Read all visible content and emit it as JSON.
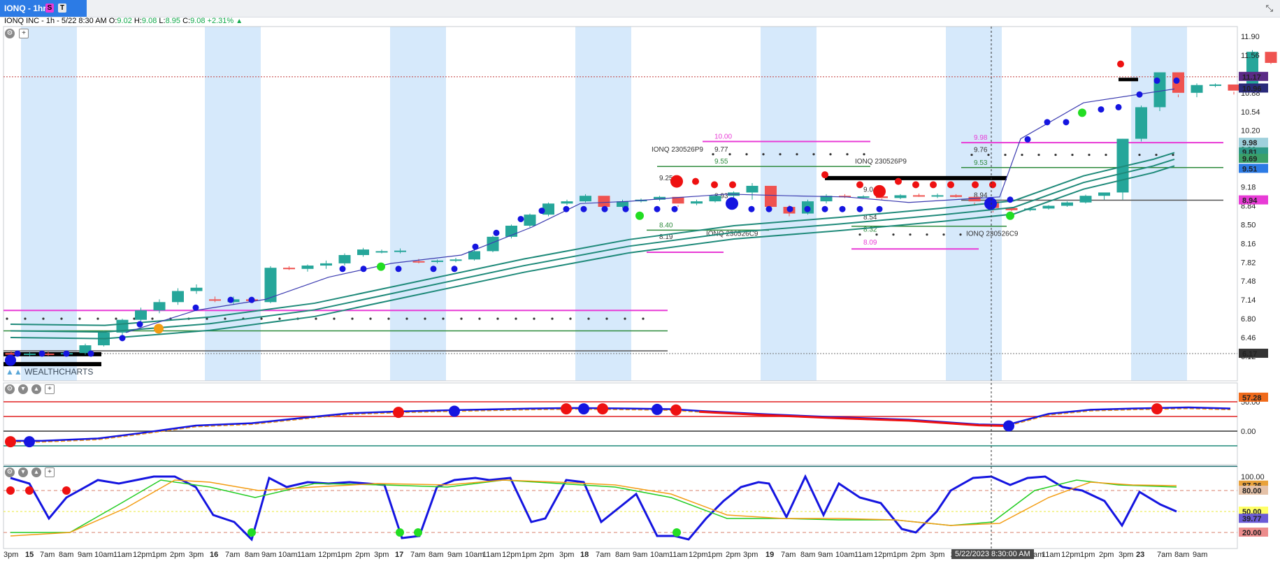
{
  "tab": {
    "title": "IONQ - 1hr",
    "badge_s": "S",
    "badge_t": "T"
  },
  "info": {
    "prefix": "IONQ INC - 1h - 5/22 8:30 AM",
    "o_label": "O:",
    "o": "9.02",
    "h_label": "H:",
    "h": "9.08",
    "l_label": "L:",
    "l": "8.95",
    "c_label": "C:",
    "c": "9.08",
    "change": "+2.31%",
    "arrow": "▲"
  },
  "watermark": "WEALTHCHARTS",
  "price_axis": {
    "ticks": [
      "11.90",
      "11.56",
      "10.88",
      "10.54",
      "10.20",
      "9.86",
      "9.52",
      "9.18",
      "8.84",
      "8.50",
      "8.16",
      "7.82",
      "7.48",
      "7.14",
      "6.80",
      "6.46",
      "6.12"
    ],
    "tick_values": [
      11.9,
      11.56,
      10.88,
      10.54,
      10.2,
      9.86,
      9.52,
      9.18,
      8.84,
      8.5,
      8.16,
      7.82,
      7.48,
      7.14,
      6.8,
      6.46,
      6.12
    ],
    "badges": [
      {
        "label": "11.17",
        "value": 11.17,
        "color": "#5b2a86"
      },
      {
        "label": "10.96",
        "value": 10.96,
        "color": "#2a2a7a"
      },
      {
        "label": "9.98",
        "value": 9.98,
        "color": "#9fd0dc"
      },
      {
        "label": "9.81",
        "value": 9.81,
        "color": "#2e9a88"
      },
      {
        "label": "9.69",
        "value": 9.69,
        "color": "#3aa06a"
      },
      {
        "label": "9.51",
        "value": 9.51,
        "color": "#2c7be5"
      },
      {
        "label": "8.94",
        "value": 8.94,
        "color": "#e83bd6"
      },
      {
        "label": "6.17",
        "value": 6.17,
        "color": "#333333"
      }
    ]
  },
  "option_labels": [
    {
      "text": "IONQ 230526P9"
    },
    {
      "text": "IONQ 230526P9"
    },
    {
      "text": "IONQ 230526C9"
    },
    {
      "text": "IONQ 230526C9"
    }
  ],
  "level_labels": [
    "10.00",
    "9.77",
    "9.55",
    "9.25",
    "8.93",
    "8.40",
    "8.19",
    "9.04",
    "8.54",
    "8.32",
    "8.09",
    "9.98",
    "9.76",
    "9.53",
    "8.94"
  ],
  "osc1": {
    "ticks": [
      "50.00",
      "0.00"
    ],
    "badge": "57.28"
  },
  "osc2": {
    "ticks": [
      "100.00",
      "80.00",
      "50.00",
      "20.00"
    ],
    "badges": [
      "87.26",
      "80.00",
      "50.00",
      "39.77",
      "20.00"
    ]
  },
  "x_axis": {
    "labels": [
      "3pm",
      "15",
      "7am",
      "8am",
      "9am",
      "10am",
      "11am",
      "12pm",
      "1pm",
      "2pm",
      "3pm",
      "16",
      "7am",
      "8am",
      "9am",
      "10am",
      "11am",
      "12pm",
      "1pm",
      "2pm",
      "3pm",
      "17",
      "7am",
      "8am",
      "9am",
      "10am",
      "11am",
      "12pm",
      "1pm",
      "2pm",
      "3pm",
      "18",
      "7am",
      "8am",
      "9am",
      "10am",
      "11am",
      "12pm",
      "1pm",
      "2pm",
      "3pm",
      "19",
      "7am",
      "8am",
      "9am",
      "10am",
      "11am",
      "12pm",
      "1pm",
      "2pm",
      "3pm",
      "22",
      "5/22/2023 8:30:00 AM",
      "am",
      "11am",
      "12pm",
      "1pm",
      "2pm",
      "3pm",
      "23",
      "7am",
      "8am",
      "9am"
    ],
    "crosshair": "5/22/2023 8:30:00 AM"
  },
  "colors": {
    "up": "#26a69a",
    "down": "#ef5350",
    "band": "#d6e9fb",
    "ma": "#1f8a7a",
    "magenta": "#e83bd6",
    "green_line": "#2e8b3d"
  }
}
